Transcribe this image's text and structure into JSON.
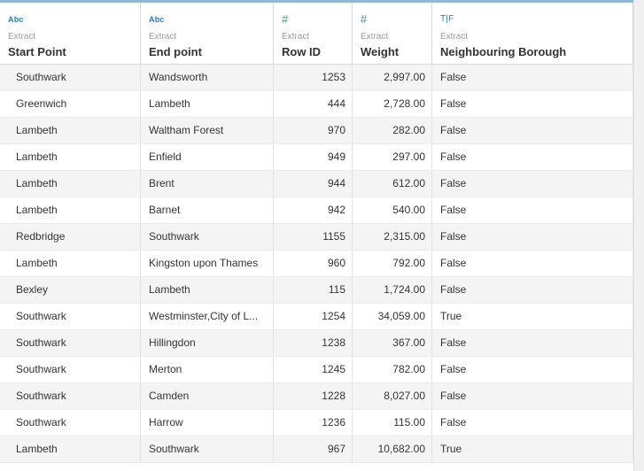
{
  "columns": [
    {
      "type_label": "Abc",
      "source": "Extract",
      "name": "Start Point"
    },
    {
      "type_label": "Abc",
      "source": "Extract",
      "name": "End point"
    },
    {
      "type_label": "#",
      "source": "Extract",
      "name": "Row ID"
    },
    {
      "type_label": "#",
      "source": "Extract",
      "name": "Weight"
    },
    {
      "type_label": "T|F",
      "source": "Extract",
      "name": "Neighbouring Borough"
    }
  ],
  "rows": [
    [
      "Southwark",
      "Wandsworth",
      "1253",
      "2,997.00",
      "False"
    ],
    [
      "Greenwich",
      "Lambeth",
      "444",
      "2,728.00",
      "False"
    ],
    [
      "Lambeth",
      "Waltham Forest",
      "970",
      "282.00",
      "False"
    ],
    [
      "Lambeth",
      "Enfield",
      "949",
      "297.00",
      "False"
    ],
    [
      "Lambeth",
      "Brent",
      "944",
      "612.00",
      "False"
    ],
    [
      "Lambeth",
      "Barnet",
      "942",
      "540.00",
      "False"
    ],
    [
      "Redbridge",
      "Southwark",
      "1155",
      "2,315.00",
      "False"
    ],
    [
      "Lambeth",
      "Kingston upon Thames",
      "960",
      "792.00",
      "False"
    ],
    [
      "Bexley",
      "Lambeth",
      "115",
      "1,724.00",
      "False"
    ],
    [
      "Southwark",
      "Westminster,City of L...",
      "1254",
      "34,059.00",
      "True"
    ],
    [
      "Southwark",
      "Hillingdon",
      "1238",
      "367.00",
      "False"
    ],
    [
      "Southwark",
      "Merton",
      "1245",
      "782.00",
      "False"
    ],
    [
      "Southwark",
      "Camden",
      "1228",
      "8,027.00",
      "False"
    ],
    [
      "Southwark",
      "Harrow",
      "1236",
      "115.00",
      "False"
    ],
    [
      "Lambeth",
      "Southwark",
      "967",
      "10,682.00",
      "True"
    ]
  ]
}
